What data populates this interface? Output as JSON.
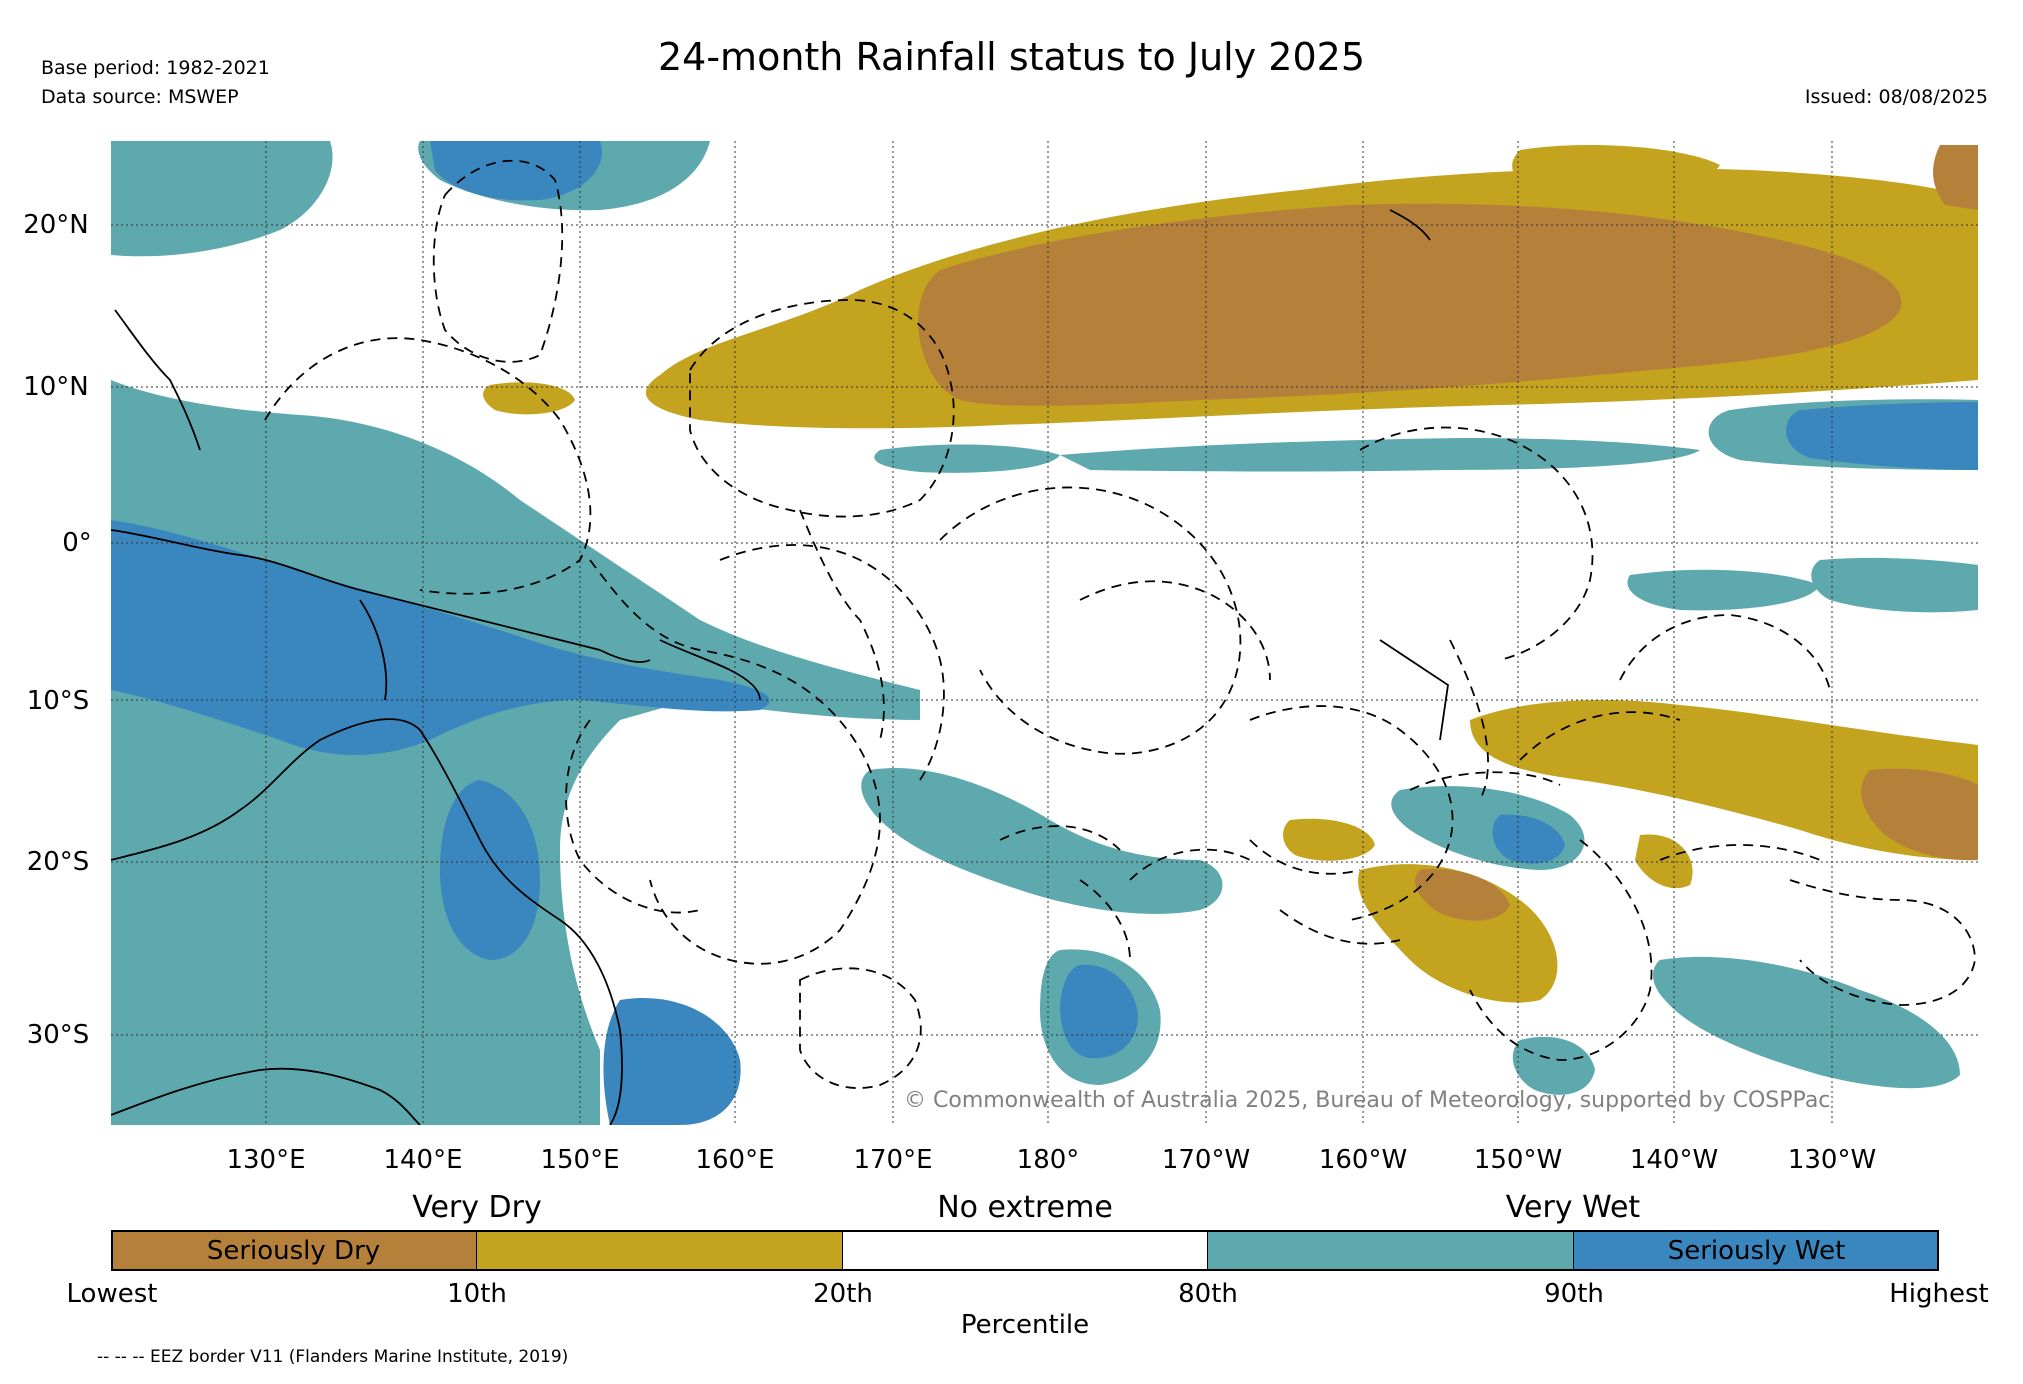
{
  "header": {
    "title": "24-month Rainfall status to July 2025",
    "base_period": "Base period: 1982-2021",
    "data_source": "Data source: MSWEP",
    "issued": "Issued: 08/08/2025"
  },
  "map": {
    "lat_labels": [
      "20°N",
      "10°N",
      "0°",
      "10°S",
      "20°S",
      "30°S"
    ],
    "lon_labels": [
      "130°E",
      "140°E",
      "150°E",
      "160°E",
      "170°E",
      "180°",
      "170°W",
      "160°W",
      "150°W",
      "140°W",
      "130°W"
    ],
    "copyright": "© Commonwealth of Australia 2025, Bureau of Meteorology, supported by COSPPac",
    "gridlines": true,
    "colors": {
      "seriously_dry": "#b5803a",
      "very_dry": "#c4a31e",
      "no_extreme": "#ffffff",
      "very_wet": "#5ea9ae",
      "seriously_wet": "#3a86be"
    }
  },
  "legend": {
    "category_labels": [
      "Very Dry",
      "No extreme",
      "Very Wet"
    ],
    "segments": [
      {
        "label": "Seriously Dry",
        "color": "#b5803a"
      },
      {
        "label": "",
        "color": "#c4a31e"
      },
      {
        "label": "",
        "color": "#ffffff"
      },
      {
        "label": "",
        "color": "#5ea9ae"
      },
      {
        "label": "Seriously Wet",
        "color": "#3a86be"
      }
    ],
    "ticks": [
      "Lowest",
      "10th",
      "20th",
      "80th",
      "90th",
      "Highest"
    ],
    "axis_label": "Percentile"
  },
  "footer": {
    "eez_note": "-- -- -- EEZ border V11 (Flanders Marine Institute, 2019)"
  }
}
